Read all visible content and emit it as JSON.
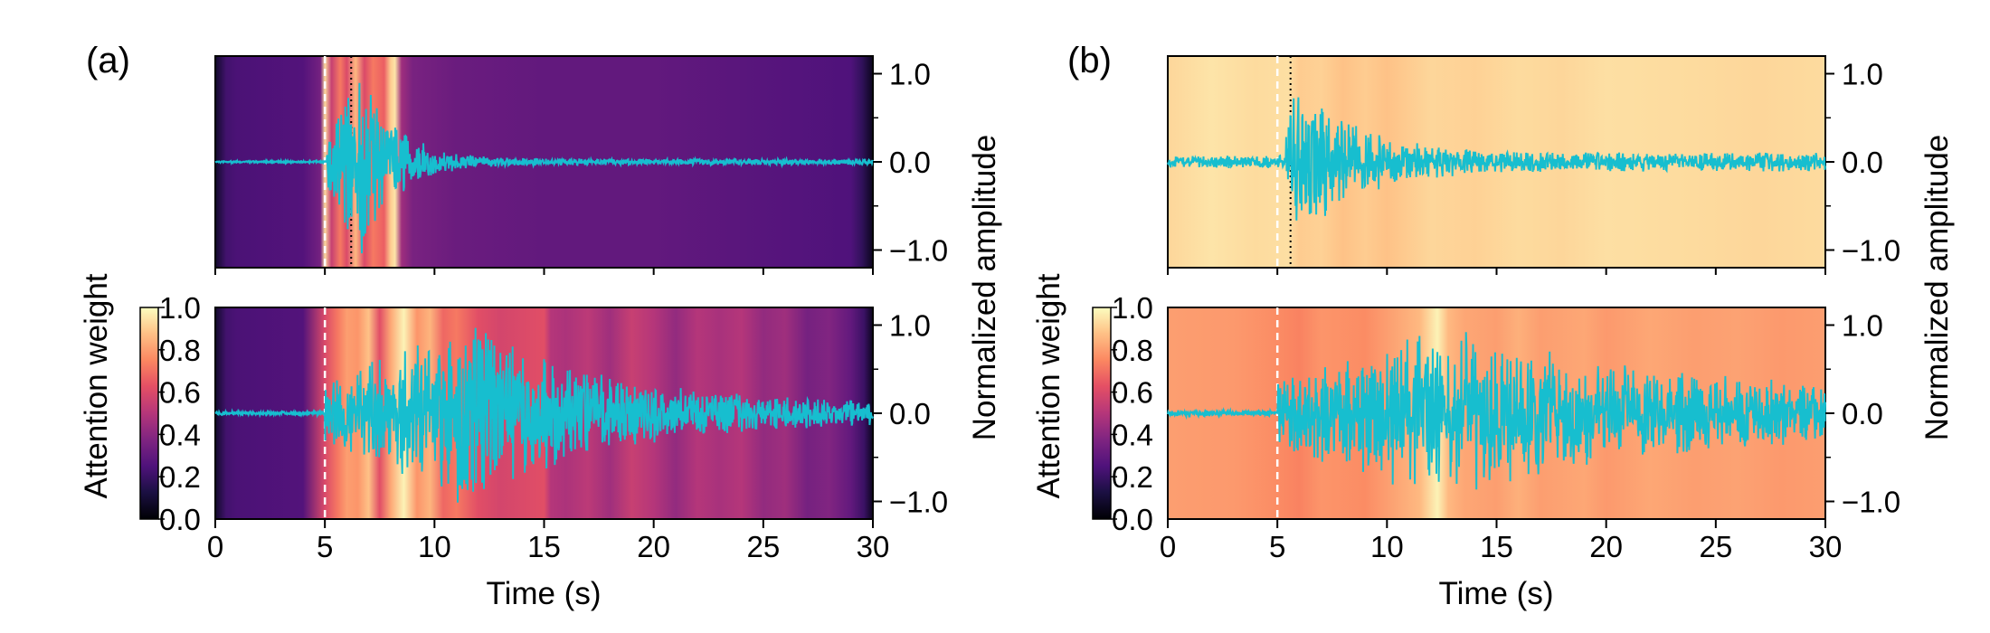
{
  "chart_data": [
    {
      "type": "heatmap",
      "panel_label": "(a)",
      "xlabel": "Time (s)",
      "ylabel_left": "Attention weight",
      "ylabel_right": "Normalized amplitude",
      "x_ticks": [
        "0",
        "5",
        "10",
        "15",
        "20",
        "25",
        "30"
      ],
      "xlim": [
        0,
        30
      ],
      "amplitude_ticks": [
        "1.0",
        "0.0",
        "−1.0"
      ],
      "amplitude_lim": [
        -1.2,
        1.2
      ],
      "colorbar": {
        "colormap": "magma",
        "range": [
          0.0,
          1.0
        ],
        "ticks": [
          "1.0",
          "0.8",
          "0.6",
          "0.4",
          "0.2",
          "0.0"
        ]
      },
      "waveform_color": "#17becf",
      "subplots": [
        {
          "name": "top",
          "p_arrival": 5.0,
          "s_marker": 6.2,
          "attention": [
            [
              0,
              0.08
            ],
            [
              0.5,
              0.22
            ],
            [
              1,
              0.24
            ],
            [
              4,
              0.26
            ],
            [
              4.8,
              0.35
            ],
            [
              5.0,
              0.93
            ],
            [
              5.3,
              0.55
            ],
            [
              5.7,
              0.72
            ],
            [
              6.0,
              0.6
            ],
            [
              6.4,
              0.86
            ],
            [
              6.8,
              0.6
            ],
            [
              7.2,
              0.72
            ],
            [
              7.7,
              0.66
            ],
            [
              8.0,
              0.9
            ],
            [
              8.2,
              0.95
            ],
            [
              8.5,
              0.45
            ],
            [
              9,
              0.36
            ],
            [
              11,
              0.32
            ],
            [
              15,
              0.3
            ],
            [
              20,
              0.3
            ],
            [
              25,
              0.27
            ],
            [
              29,
              0.25
            ],
            [
              29.5,
              0.18
            ],
            [
              30,
              0.05
            ]
          ],
          "waveform": {
            "onset": 5.1,
            "peak_time": 6.6,
            "peak_amplitude": 0.95,
            "decay": 1.6,
            "noise": 0.01,
            "coda": 0.03
          }
        },
        {
          "name": "bottom",
          "p_arrival": 5.0,
          "attention": [
            [
              0,
              0.08
            ],
            [
              0.5,
              0.22
            ],
            [
              1,
              0.24
            ],
            [
              4,
              0.26
            ],
            [
              5.0,
              0.6
            ],
            [
              5.6,
              0.72
            ],
            [
              6.0,
              0.8
            ],
            [
              6.5,
              0.78
            ],
            [
              7,
              0.88
            ],
            [
              7.5,
              0.62
            ],
            [
              8,
              0.82
            ],
            [
              8.6,
              0.98
            ],
            [
              9.2,
              0.78
            ],
            [
              9.8,
              0.85
            ],
            [
              10.4,
              0.68
            ],
            [
              11,
              0.72
            ],
            [
              12,
              0.62
            ],
            [
              13,
              0.58
            ],
            [
              14,
              0.6
            ],
            [
              15,
              0.62
            ],
            [
              15.3,
              0.5
            ],
            [
              16,
              0.48
            ],
            [
              17,
              0.52
            ],
            [
              18,
              0.45
            ],
            [
              19,
              0.55
            ],
            [
              20,
              0.5
            ],
            [
              21,
              0.42
            ],
            [
              22,
              0.5
            ],
            [
              23,
              0.47
            ],
            [
              24,
              0.5
            ],
            [
              25,
              0.42
            ],
            [
              26,
              0.45
            ],
            [
              27,
              0.35
            ],
            [
              28,
              0.38
            ],
            [
              29,
              0.3
            ],
            [
              29.6,
              0.2
            ],
            [
              30,
              0.05
            ]
          ],
          "waveform": {
            "onset": 5.0,
            "peak_time": 11.5,
            "peak_amplitude": 0.9,
            "decay": 6.0,
            "noise": 0.02,
            "coda": 0.08
          }
        }
      ]
    },
    {
      "type": "heatmap",
      "panel_label": "(b)",
      "xlabel": "Time (s)",
      "ylabel_left": "Attention weight",
      "ylabel_right": "Normalized amplitude",
      "x_ticks": [
        "0",
        "5",
        "10",
        "15",
        "20",
        "25",
        "30"
      ],
      "xlim": [
        0,
        30
      ],
      "amplitude_ticks": [
        "1.0",
        "0.0",
        "−1.0"
      ],
      "amplitude_lim": [
        -1.2,
        1.2
      ],
      "colorbar": {
        "colormap": "magma",
        "range": [
          0.0,
          1.0
        ],
        "ticks": [
          "1.0",
          "0.8",
          "0.6",
          "0.4",
          "0.2",
          "0.0"
        ]
      },
      "waveform_color": "#17becf",
      "subplots": [
        {
          "name": "top",
          "p_arrival": 5.0,
          "s_marker": 5.6,
          "attention": [
            [
              0,
              0.92
            ],
            [
              2,
              0.95
            ],
            [
              4,
              0.93
            ],
            [
              5.5,
              0.94
            ],
            [
              6,
              0.9
            ],
            [
              7,
              0.91
            ],
            [
              8,
              0.88
            ],
            [
              9,
              0.9
            ],
            [
              10,
              0.88
            ],
            [
              12,
              0.92
            ],
            [
              14,
              0.91
            ],
            [
              16,
              0.93
            ],
            [
              18,
              0.92
            ],
            [
              20,
              0.94
            ],
            [
              24,
              0.93
            ],
            [
              27,
              0.92
            ],
            [
              30,
              0.93
            ]
          ],
          "waveform": {
            "onset": 5.4,
            "peak_time": 5.8,
            "peak_amplitude": 0.95,
            "decay": 2.5,
            "noise": 0.06,
            "coda": 0.09
          }
        },
        {
          "name": "bottom",
          "p_arrival": 5.0,
          "attention": [
            [
              0,
              0.8
            ],
            [
              3,
              0.79
            ],
            [
              5,
              0.76
            ],
            [
              6,
              0.74
            ],
            [
              7,
              0.78
            ],
            [
              9,
              0.76
            ],
            [
              10,
              0.8
            ],
            [
              11.5,
              0.86
            ],
            [
              12.3,
              0.98
            ],
            [
              12.8,
              0.86
            ],
            [
              13.5,
              0.82
            ],
            [
              15,
              0.8
            ],
            [
              16,
              0.84
            ],
            [
              17,
              0.8
            ],
            [
              19,
              0.82
            ],
            [
              20,
              0.79
            ],
            [
              22,
              0.82
            ],
            [
              24,
              0.8
            ],
            [
              26,
              0.81
            ],
            [
              28,
              0.79
            ],
            [
              30,
              0.8
            ]
          ],
          "waveform": {
            "onset": 5.0,
            "peak_time": 12.8,
            "peak_amplitude": 0.85,
            "decay": 9.0,
            "noise": 0.03,
            "coda": 0.2
          }
        }
      ]
    }
  ]
}
